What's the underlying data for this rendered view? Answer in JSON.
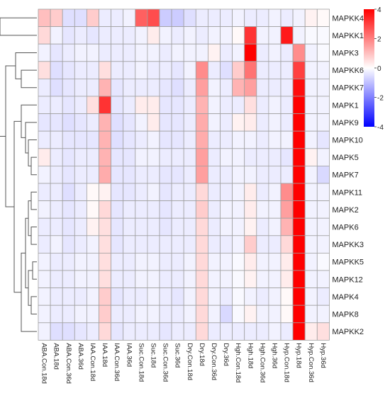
{
  "chart_data": {
    "type": "heatmap",
    "colorscale": {
      "low": "#0000ff",
      "mid": "#ffffff",
      "high": "#ff0000",
      "range": [
        -4,
        4
      ],
      "ticks": [
        {
          "value": 4,
          "label": "4"
        },
        {
          "value": 2,
          "label": "2"
        },
        {
          "value": 0,
          "label": "0"
        },
        {
          "value": -2,
          "label": "-2"
        },
        {
          "value": -4,
          "label": "-4"
        }
      ]
    },
    "columns": [
      "ABA.Con.18d",
      "ABA.18d",
      "ABA.Con.36d",
      "ABA.36d",
      "IAA.Con.18d",
      "IAA.18d",
      "IAA.Con.36d",
      "IAA.36d",
      "Suc.Con.18d",
      "Suc.18d",
      "Suc.Con.36d",
      "Suc.36d",
      "Dry.Con.18d",
      "Dry.18d",
      "Dry.Con.36d",
      "Dry.36d",
      "Hgh.Con.18d",
      "Hgh.18d",
      "Hgh.Con.36d",
      "Hgh.36d",
      "Hyp.Con.18d",
      "Hyp.18d",
      "Hyp.Con.36d",
      "Hyp.36d"
    ],
    "rows": [
      "MAPKK4",
      "MAPKK1",
      "MAPK3",
      "MAPKK6",
      "MAPKK7",
      "MAPK1",
      "MAPK9",
      "MAPK10",
      "MAPK5",
      "MAPK7",
      "MAPK11",
      "MAPK2",
      "MAPK6",
      "MAPKK3",
      "MAPKK5",
      "MAPK12",
      "MAPK4",
      "MAPK8",
      "MAPKK2"
    ],
    "values": [
      [
        1.0,
        0.8,
        -0.5,
        -0.5,
        0.8,
        -0.3,
        -0.3,
        -0.2,
        2.5,
        2.8,
        -0.8,
        -0.8,
        -0.5,
        -0.3,
        -0.3,
        -0.3,
        -0.2,
        -0.3,
        -0.3,
        -0.2,
        -0.3,
        -0.2,
        0.2,
        0.1
      ],
      [
        0.6,
        -0.2,
        -0.4,
        -0.3,
        -0.4,
        -0.3,
        -0.3,
        -0.3,
        -0.2,
        0.3,
        -0.2,
        -0.3,
        -0.2,
        -0.3,
        -0.2,
        -0.2,
        0.1,
        3.2,
        -0.2,
        -0.2,
        3.6,
        -0.2,
        -0.1,
        -0.1
      ],
      [
        -0.2,
        -0.4,
        -0.3,
        -0.2,
        -0.2,
        -0.3,
        -0.3,
        -0.3,
        -0.2,
        -0.2,
        -0.3,
        -0.2,
        -0.2,
        -0.2,
        0.2,
        -0.3,
        -0.2,
        4.5,
        -0.3,
        -0.2,
        -0.3,
        1.8,
        -0.2,
        -0.1
      ],
      [
        0.5,
        -0.5,
        -0.4,
        -0.3,
        -0.3,
        0.5,
        -0.3,
        -0.3,
        -0.2,
        -0.3,
        -0.3,
        -0.4,
        -0.2,
        1.8,
        -0.3,
        -0.5,
        0.8,
        2.2,
        -0.3,
        -0.3,
        -0.3,
        3.0,
        -0.2,
        -0.2
      ],
      [
        -0.3,
        -0.5,
        -0.4,
        -0.3,
        -0.3,
        1.2,
        -0.4,
        -0.3,
        -0.3,
        -0.3,
        -0.4,
        -0.5,
        -0.3,
        1.5,
        -0.2,
        -0.3,
        1.2,
        1.5,
        -0.3,
        -0.3,
        -0.3,
        3.8,
        -0.2,
        -0.2
      ],
      [
        -0.3,
        -0.3,
        -0.4,
        -0.3,
        0.5,
        3.2,
        -0.4,
        -0.3,
        0.3,
        0.3,
        -0.4,
        -0.4,
        -0.3,
        1.2,
        -0.2,
        -0.3,
        -0.3,
        0.5,
        -0.3,
        -0.2,
        -0.3,
        4.0,
        -0.2,
        -0.2
      ],
      [
        -0.4,
        -0.4,
        -0.5,
        -0.4,
        -0.3,
        1.2,
        -0.5,
        -0.4,
        -0.2,
        0.3,
        -0.4,
        -0.4,
        -0.3,
        1.3,
        -0.2,
        -0.3,
        0.2,
        0.3,
        -0.3,
        -0.2,
        -0.3,
        4.0,
        -0.2,
        -0.2
      ],
      [
        -0.3,
        -0.3,
        -0.4,
        -0.4,
        -0.4,
        1.2,
        -0.5,
        -0.4,
        -0.3,
        -0.2,
        -0.4,
        -0.4,
        -0.3,
        1.3,
        -0.3,
        -0.3,
        -0.2,
        -0.2,
        -0.3,
        -0.2,
        -0.2,
        4.0,
        -0.2,
        -0.4
      ],
      [
        0.3,
        -0.3,
        -0.4,
        -0.3,
        -0.3,
        1.2,
        -0.4,
        -0.4,
        -0.2,
        -0.2,
        -0.3,
        -0.3,
        -0.3,
        1.5,
        -0.3,
        -0.2,
        -0.2,
        -0.3,
        -0.3,
        -0.3,
        -0.4,
        4.0,
        0.2,
        -0.2
      ],
      [
        -0.2,
        -0.3,
        -0.4,
        -0.3,
        -0.3,
        1.3,
        -0.4,
        -0.4,
        -0.3,
        -0.3,
        -0.4,
        -0.4,
        -0.3,
        1.5,
        -0.3,
        -0.3,
        -0.2,
        -0.2,
        -0.3,
        -0.3,
        -0.3,
        4.0,
        -0.2,
        -0.6
      ],
      [
        -0.3,
        -0.3,
        -0.5,
        -0.3,
        0.1,
        0.2,
        -0.4,
        -0.4,
        -0.3,
        -0.2,
        -0.4,
        -0.3,
        -0.3,
        0.6,
        -0.3,
        -0.3,
        -0.2,
        0.3,
        -0.3,
        -0.2,
        1.8,
        4.5,
        -0.2,
        -0.2
      ],
      [
        -0.2,
        -0.3,
        -0.4,
        -0.3,
        0.1,
        0.6,
        -0.4,
        -0.3,
        -0.3,
        -0.3,
        -0.4,
        -0.3,
        -0.3,
        0.8,
        -0.3,
        -0.2,
        -0.2,
        0.3,
        -0.2,
        -0.2,
        1.5,
        4.5,
        -0.2,
        -0.2
      ],
      [
        -0.3,
        -0.3,
        -0.4,
        -0.3,
        0.2,
        0.5,
        -0.4,
        -0.3,
        -0.3,
        -0.3,
        -0.4,
        -0.3,
        -0.3,
        0.6,
        -0.3,
        -0.2,
        -0.2,
        0.2,
        -0.3,
        -0.2,
        1.2,
        4.5,
        -0.2,
        -0.2
      ],
      [
        -0.3,
        -0.2,
        -0.4,
        -0.3,
        -0.2,
        0.5,
        -0.4,
        -0.3,
        -0.3,
        -0.3,
        -0.3,
        -0.3,
        -0.3,
        0.6,
        -0.3,
        -0.3,
        -0.2,
        0.8,
        -0.3,
        -0.3,
        0.6,
        4.5,
        -0.2,
        -0.2
      ],
      [
        -0.2,
        -0.3,
        -0.3,
        -0.2,
        -0.2,
        0.5,
        -0.3,
        -0.3,
        -0.2,
        -0.2,
        -0.3,
        -0.3,
        -0.2,
        0.6,
        -0.2,
        -0.2,
        -0.1,
        0.3,
        -0.2,
        -0.2,
        0.3,
        4.5,
        -0.2,
        -0.1
      ],
      [
        -0.2,
        -0.3,
        -0.3,
        -0.2,
        -0.2,
        0.5,
        -0.3,
        -0.3,
        -0.2,
        -0.2,
        -0.3,
        -0.3,
        -0.2,
        0.6,
        -0.2,
        -0.2,
        -0.1,
        0.2,
        -0.2,
        -0.2,
        0.3,
        4.5,
        -0.2,
        -0.2
      ],
      [
        -0.2,
        -0.3,
        -0.3,
        -0.3,
        -0.2,
        0.8,
        -0.4,
        -0.3,
        -0.3,
        -0.2,
        -0.3,
        -0.4,
        -0.2,
        0.6,
        -0.2,
        -0.3,
        -0.1,
        -0.2,
        -0.3,
        -0.2,
        0.1,
        4.5,
        -0.2,
        -0.3
      ],
      [
        -0.2,
        -0.3,
        -0.3,
        -0.2,
        -0.2,
        0.8,
        -0.3,
        -0.3,
        -0.2,
        -0.2,
        -0.3,
        -0.3,
        -0.2,
        0.6,
        -0.2,
        -0.6,
        -0.1,
        0.2,
        -0.2,
        -0.2,
        0.1,
        4.5,
        -0.2,
        -0.2
      ],
      [
        -0.2,
        -0.5,
        -0.5,
        -0.4,
        -0.3,
        0.6,
        -0.4,
        -0.3,
        -0.3,
        -0.3,
        -0.4,
        -0.3,
        -0.3,
        0.6,
        -0.3,
        -0.3,
        -0.3,
        -0.3,
        -0.3,
        -0.2,
        -0.3,
        4.5,
        0.3,
        0.5
      ]
    ]
  }
}
